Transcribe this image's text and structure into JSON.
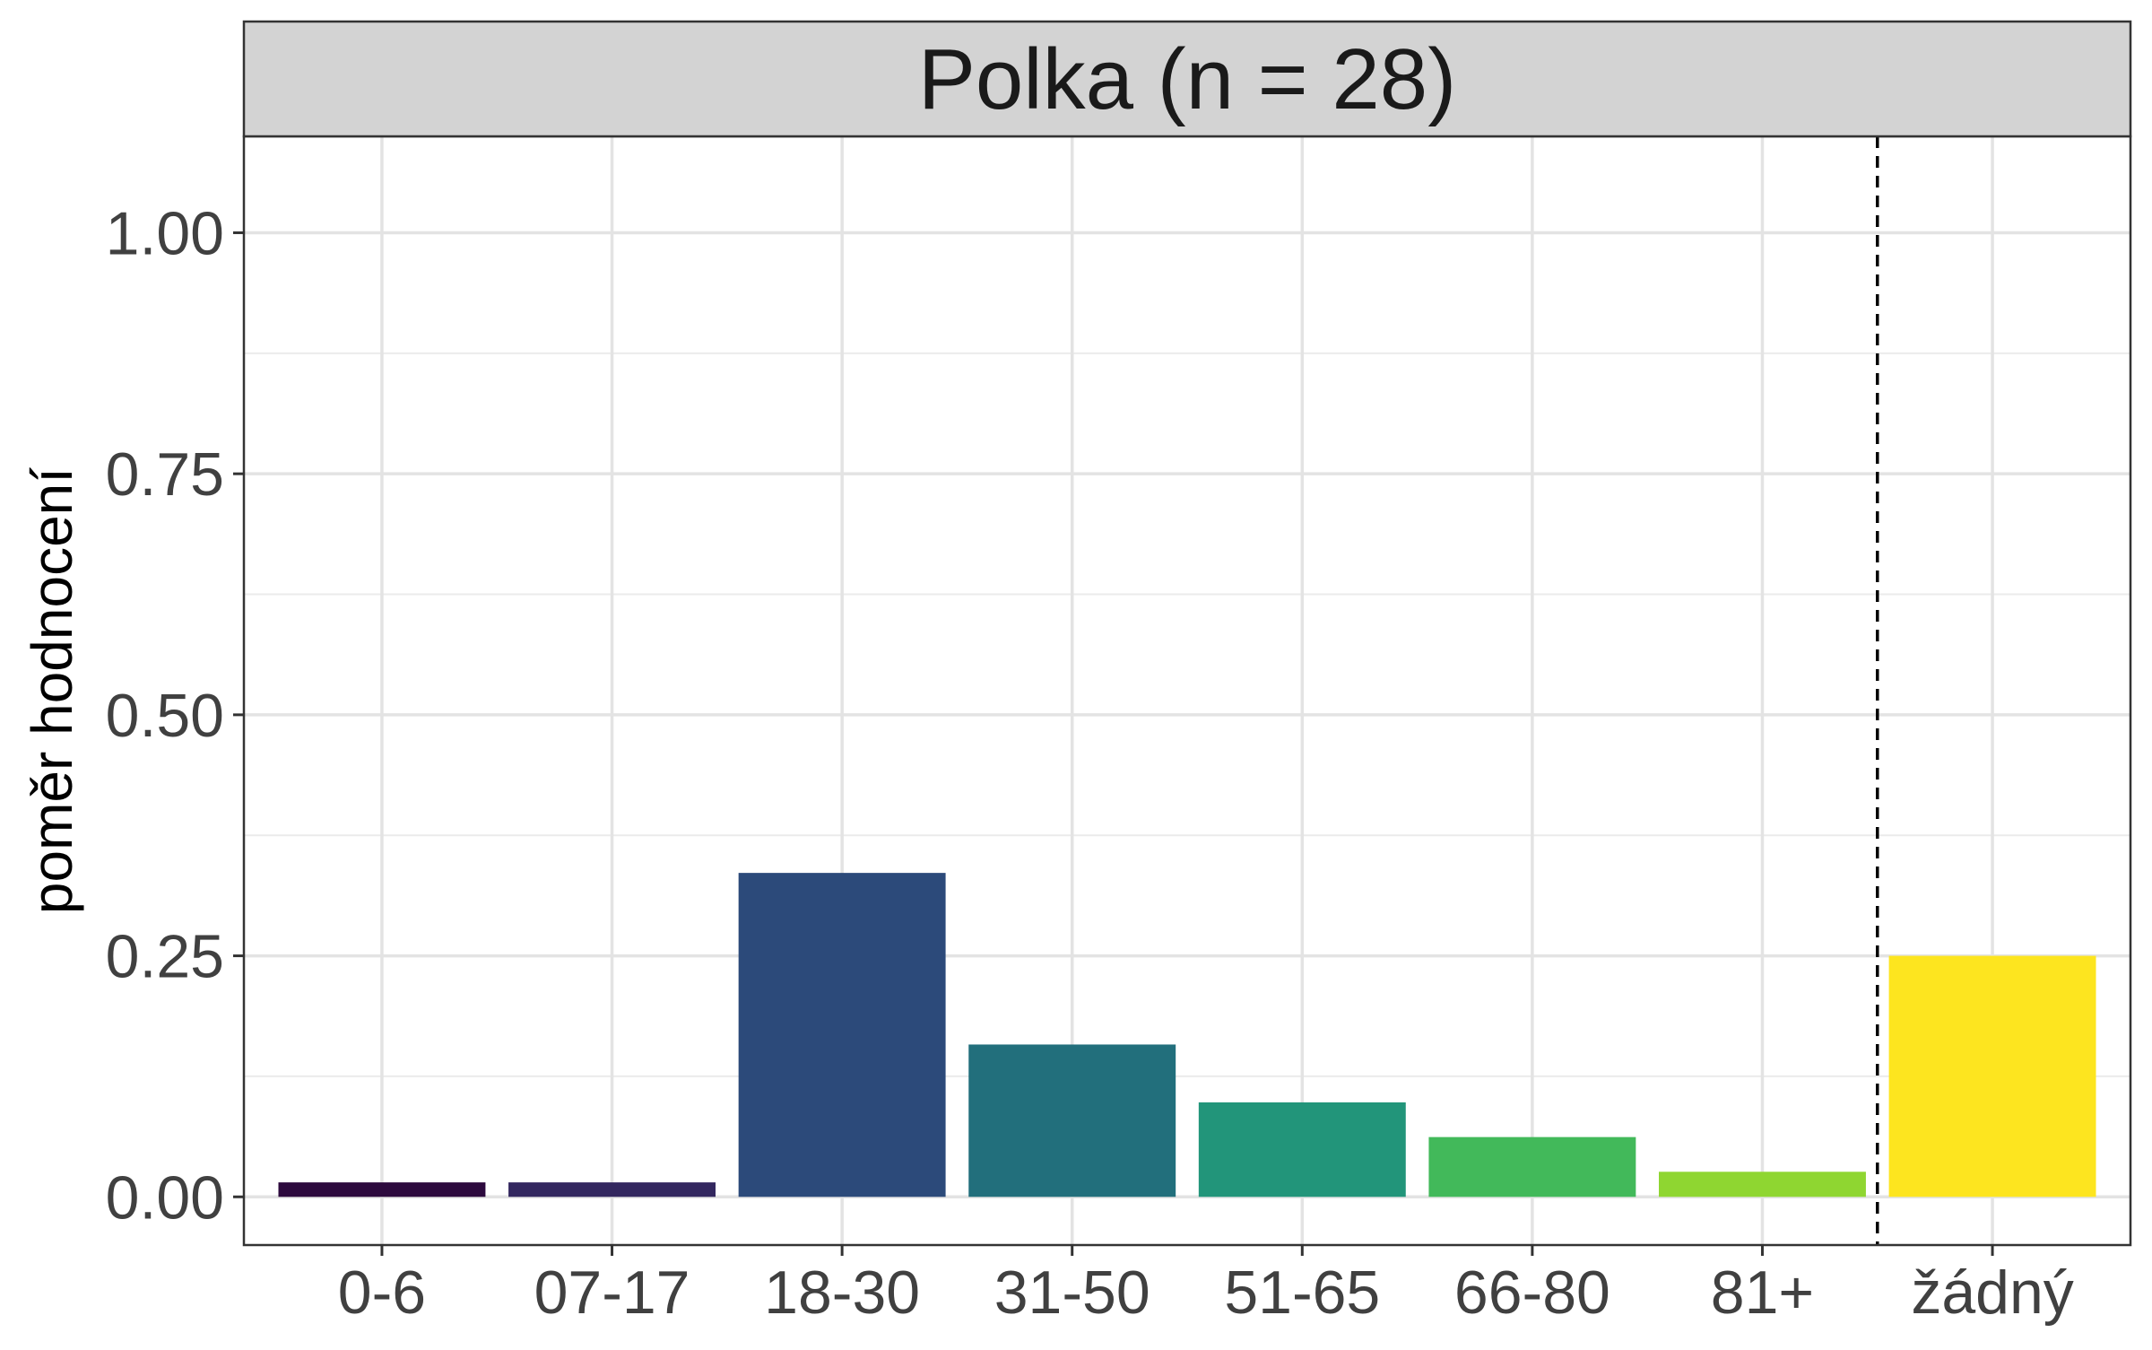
{
  "chart_data": {
    "type": "bar",
    "title": "Polka (n = 28)",
    "xlabel": "",
    "ylabel": "poměr hodnocení",
    "categories": [
      "0-6",
      "07-17",
      "18-30",
      "31-50",
      "51-65",
      "66-80",
      "81+",
      "žádný"
    ],
    "values": [
      0.015,
      0.015,
      0.336,
      0.158,
      0.098,
      0.062,
      0.026,
      0.25
    ],
    "colors": [
      "#2d0a3e",
      "#33275f",
      "#2c4a7a",
      "#226f7c",
      "#22957a",
      "#42b95a",
      "#8fd631",
      "#fde51f"
    ],
    "ylim": [
      -0.05,
      1.1
    ],
    "yticks": [
      0.0,
      0.25,
      0.5,
      0.75,
      1.0
    ],
    "ytick_labels": [
      "0.00",
      "0.25",
      "0.50",
      "0.75",
      "1.00"
    ],
    "separator_after_category": "81+",
    "separator_style": "dashed",
    "grid": true,
    "legend": "none",
    "panel_strip_color": "#d3d3d3"
  }
}
